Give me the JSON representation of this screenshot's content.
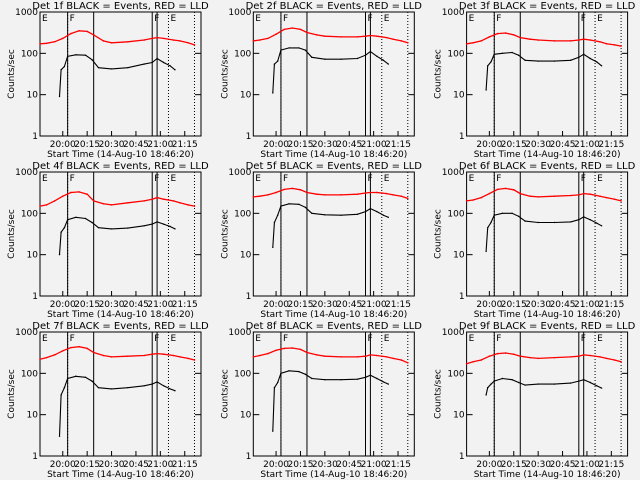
{
  "chart_data": {
    "type": "line",
    "yscale": "log",
    "xlabel": "Start Time (14-Aug-10 18:46:20)",
    "ylabel": "Counts/sec",
    "xlim": [
      "19:46",
      "21:25"
    ],
    "ylim": [
      1,
      1000
    ],
    "x_ticks": [
      "20:00",
      "20:15",
      "20:30",
      "20:45",
      "21:00",
      "21:15"
    ],
    "y_ticks": [
      "1",
      "10",
      "100",
      "1000"
    ],
    "grid": false,
    "colors": {
      "LLD": "#ff0000",
      "Events": "#000000"
    },
    "markers": [
      {
        "time": "20:03",
        "style": "dotted",
        "label": ""
      },
      {
        "time": "20:03",
        "style": "solid",
        "label": "F"
      },
      {
        "time": "20:19",
        "style": "solid",
        "label": ""
      },
      {
        "time": "20:55",
        "style": "solid",
        "label": "F"
      },
      {
        "time": "20:58",
        "style": "solid",
        "label": ""
      },
      {
        "time": "21:05",
        "style": "dotted",
        "label": "E"
      },
      {
        "time": "21:21",
        "style": "dotted",
        "label": ""
      }
    ],
    "left_label": "E",
    "times_red": [
      "19:46",
      "19:50",
      "19:55",
      "20:00",
      "20:05",
      "20:10",
      "20:15",
      "20:19",
      "20:25",
      "20:30",
      "20:40",
      "20:50",
      "20:55",
      "20:58",
      "21:02",
      "21:08",
      "21:12",
      "21:17",
      "21:21"
    ],
    "times_black": [
      "19:58",
      "19:59",
      "20:01",
      "20:03",
      "20:08",
      "20:14",
      "20:18",
      "20:22",
      "20:30",
      "20:40",
      "20:50",
      "20:55",
      "20:58",
      "21:02",
      "21:06",
      "21:09"
    ],
    "panels": [
      {
        "title": "Det 1f BLACK = Events, RED = LLD",
        "red": [
          170,
          175,
          190,
          230,
          300,
          350,
          340,
          280,
          200,
          180,
          190,
          210,
          230,
          240,
          230,
          210,
          200,
          180,
          160
        ],
        "black": [
          9,
          40,
          48,
          85,
          92,
          90,
          70,
          45,
          42,
          45,
          55,
          60,
          75,
          60,
          50,
          40
        ]
      },
      {
        "title": "Det 2f BLACK = Events, RED = LLD",
        "red": [
          200,
          210,
          230,
          290,
          380,
          410,
          380,
          320,
          280,
          260,
          250,
          250,
          260,
          270,
          260,
          240,
          220,
          200,
          180
        ],
        "black": [
          11,
          55,
          65,
          120,
          135,
          135,
          120,
          80,
          72,
          72,
          75,
          90,
          110,
          85,
          68,
          55
        ]
      },
      {
        "title": "Det 3f BLACK = Events, RED = LLD",
        "red": [
          170,
          180,
          200,
          250,
          300,
          310,
          280,
          240,
          220,
          210,
          200,
          200,
          210,
          220,
          210,
          190,
          170,
          160,
          150
        ],
        "black": [
          13,
          50,
          62,
          95,
          100,
          105,
          90,
          68,
          65,
          65,
          68,
          80,
          95,
          75,
          62,
          50
        ]
      },
      {
        "title": "Det 4f BLACK = Events, RED = LLD",
        "red": [
          150,
          160,
          200,
          260,
          320,
          330,
          290,
          200,
          170,
          160,
          180,
          200,
          220,
          240,
          220,
          200,
          180,
          160,
          150
        ],
        "black": [
          10,
          35,
          45,
          70,
          80,
          75,
          60,
          45,
          42,
          44,
          50,
          55,
          62,
          55,
          48,
          42
        ]
      },
      {
        "title": "Det 5f BLACK = Events, RED = LLD",
        "red": [
          250,
          260,
          280,
          320,
          380,
          400,
          370,
          320,
          290,
          280,
          280,
          290,
          310,
          320,
          320,
          300,
          280,
          260,
          230
        ],
        "black": [
          15,
          60,
          90,
          150,
          170,
          165,
          140,
          100,
          92,
          90,
          95,
          110,
          130,
          110,
          90,
          80
        ]
      },
      {
        "title": "Det 6f BLACK = Events, RED = LLD",
        "red": [
          200,
          210,
          240,
          300,
          380,
          400,
          370,
          300,
          260,
          250,
          260,
          270,
          280,
          300,
          290,
          260,
          240,
          220,
          200
        ],
        "black": [
          12,
          45,
          60,
          90,
          100,
          100,
          85,
          65,
          60,
          60,
          62,
          70,
          82,
          70,
          58,
          50
        ]
      },
      {
        "title": "Det 7f BLACK = Events, RED = LLD",
        "red": [
          220,
          240,
          280,
          350,
          420,
          440,
          400,
          320,
          270,
          250,
          260,
          270,
          290,
          300,
          290,
          270,
          250,
          230,
          210
        ],
        "black": [
          3,
          30,
          45,
          75,
          85,
          80,
          65,
          45,
          42,
          45,
          50,
          55,
          62,
          50,
          42,
          38
        ]
      },
      {
        "title": "Det 8f BLACK = Events, RED = LLD",
        "red": [
          250,
          270,
          300,
          360,
          400,
          410,
          380,
          320,
          280,
          260,
          250,
          250,
          260,
          280,
          270,
          250,
          230,
          210,
          180
        ],
        "black": [
          4,
          45,
          60,
          100,
          115,
          110,
          95,
          75,
          70,
          70,
          72,
          80,
          90,
          75,
          62,
          55
        ]
      },
      {
        "title": "Det 9f BLACK = Events, RED = LLD",
        "red": [
          170,
          190,
          210,
          260,
          300,
          310,
          290,
          260,
          240,
          230,
          240,
          250,
          260,
          280,
          270,
          250,
          230,
          210,
          190
        ],
        "black": [
          30,
          45,
          55,
          65,
          75,
          70,
          60,
          52,
          55,
          55,
          58,
          65,
          70,
          60,
          50,
          44
        ]
      }
    ]
  }
}
